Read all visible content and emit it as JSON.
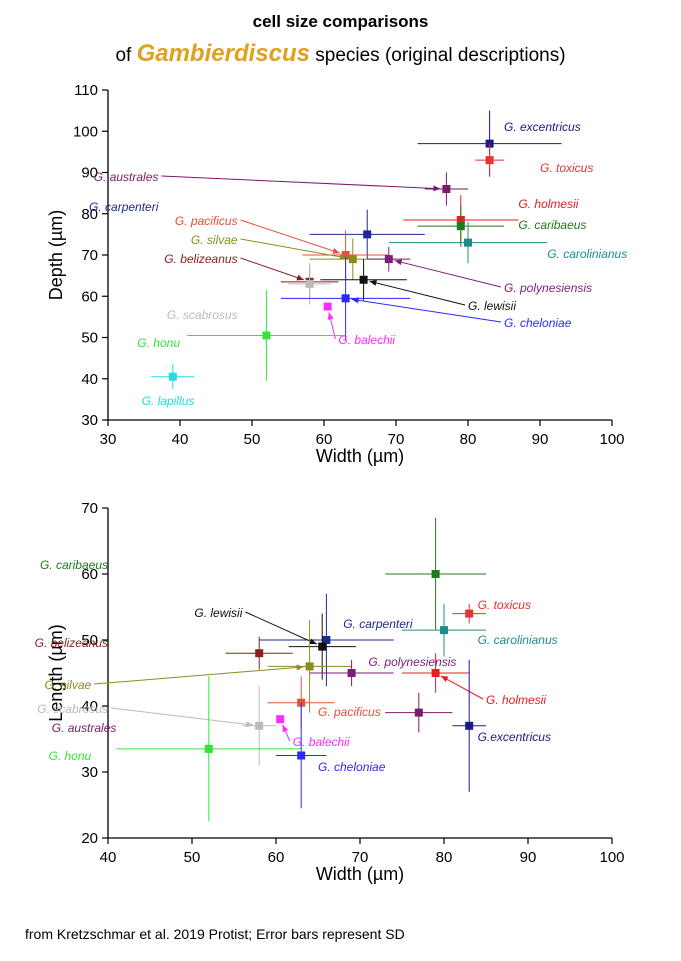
{
  "title": {
    "line1": "cell size comparisons",
    "line2_prefix": "of ",
    "line2_genus": "Gambierdiscus",
    "line2_suffix": " species (original descriptions)"
  },
  "footer": "from Kretzschmar et al. 2019 Protist; Error bars represent SD",
  "chart_data": [
    {
      "type": "scatter",
      "title": "",
      "xlabel": "Width (µm)",
      "ylabel": "Depth (µm)",
      "xlim": [
        30,
        100
      ],
      "ylim": [
        30,
        110
      ],
      "xticks": [
        30,
        40,
        50,
        60,
        70,
        80,
        90,
        100
      ],
      "yticks": [
        30,
        40,
        50,
        60,
        70,
        80,
        90,
        100,
        110
      ],
      "error_bars": "SD",
      "series": [
        {
          "name": "G. excentricus",
          "color": "#1a1a8c",
          "x": 83,
          "y": 97,
          "xerr": 10,
          "yerr": 8
        },
        {
          "name": "G. toxicus",
          "color": "#e63232",
          "x": 83,
          "y": 93,
          "xerr": 2,
          "yerr": 4
        },
        {
          "name": "G. australes",
          "color": "#7a1a6e",
          "x": 77,
          "y": 86,
          "xerr": 3,
          "yerr": 4
        },
        {
          "name": "G. holmesii",
          "color": "#e61e1e",
          "x": 79,
          "y": 78.5,
          "xerr": 8,
          "yerr": 6
        },
        {
          "name": "G. caribaeus",
          "color": "#1e7a1e",
          "x": 79,
          "y": 77,
          "xerr": 6,
          "yerr": 5
        },
        {
          "name": "G. carpenteri",
          "color": "#1e2a8c",
          "x": 66,
          "y": 75,
          "xerr": 8,
          "yerr": 6
        },
        {
          "name": "G. carolinianus",
          "color": "#1e8c8c",
          "x": 80,
          "y": 73,
          "xerr": 11,
          "yerr": 5
        },
        {
          "name": "G. pacificus",
          "color": "#e6503c",
          "x": 63,
          "y": 70,
          "xerr": 6,
          "yerr": 6
        },
        {
          "name": "G. silvae",
          "color": "#8c8c1e",
          "x": 64,
          "y": 69,
          "xerr": 6,
          "yerr": 5
        },
        {
          "name": "G. polynesiensis",
          "color": "#7a1e7a",
          "x": 69,
          "y": 69,
          "xerr": 3,
          "yerr": 3
        },
        {
          "name": "G. belizeanus",
          "color": "#8c1e1e",
          "x": 58,
          "y": 63.5,
          "xerr": 4,
          "yerr": 4
        },
        {
          "name": "G. scabrosus",
          "color": "#bbbbbb",
          "x": 58,
          "y": 63,
          "xerr": 3,
          "yerr": 5
        },
        {
          "name": "G. lewisii",
          "color": "#111111",
          "x": 65.5,
          "y": 64,
          "xerr": 6,
          "yerr": 5
        },
        {
          "name": "G. cheloniae",
          "color": "#2a2aff",
          "x": 63,
          "y": 59.5,
          "xerr": 9,
          "yerr": 10
        },
        {
          "name": "G. balechii",
          "color": "#ff2aff",
          "x": 60.5,
          "y": 57.5,
          "xerr": 0,
          "yerr": 0
        },
        {
          "name": "G. honu",
          "color": "#33e633",
          "x": 52,
          "y": 50.5,
          "xerr": 11,
          "yerr": 11
        },
        {
          "name": "G. lapillus",
          "color": "#22dddd",
          "x": 39,
          "y": 40.5,
          "xerr": 3,
          "yerr": 3
        }
      ]
    },
    {
      "type": "scatter",
      "title": "",
      "xlabel": "Width (µm)",
      "ylabel": "Length (µm)",
      "xlim": [
        40,
        100
      ],
      "ylim": [
        20,
        70
      ],
      "xticks": [
        40,
        50,
        60,
        70,
        80,
        90,
        100
      ],
      "yticks": [
        20,
        30,
        40,
        50,
        60,
        70
      ],
      "error_bars": "SD",
      "series": [
        {
          "name": "G. caribaeus",
          "color": "#1e7a1e",
          "x": 79,
          "y": 60,
          "xerr": 6,
          "yerr": 8.5
        },
        {
          "name": "G. toxicus",
          "color": "#e63232",
          "x": 83,
          "y": 54,
          "xerr": 2,
          "yerr": 1.5
        },
        {
          "name": "G. carolinianus",
          "color": "#1e8c8c",
          "x": 80,
          "y": 51.5,
          "xerr": 5,
          "yerr": 4
        },
        {
          "name": "G. carpenteri",
          "color": "#1e2a8c",
          "x": 66,
          "y": 50,
          "xerr": 8,
          "yerr": 7
        },
        {
          "name": "G. lewisii",
          "color": "#111111",
          "x": 65.5,
          "y": 49,
          "xerr": 4,
          "yerr": 5
        },
        {
          "name": "G. belizeanus",
          "color": "#8c1e1e",
          "x": 58,
          "y": 48,
          "xerr": 4,
          "yerr": 2.5
        },
        {
          "name": "G. silvae",
          "color": "#8c8c1e",
          "x": 64,
          "y": 46,
          "xerr": 5,
          "yerr": 7
        },
        {
          "name": "G. holmesii",
          "color": "#e61e1e",
          "x": 79,
          "y": 45,
          "xerr": 4,
          "yerr": 3
        },
        {
          "name": "G. polynesiensis",
          "color": "#7a1e7a",
          "x": 69,
          "y": 45,
          "xerr": 5,
          "yerr": 2
        },
        {
          "name": "G. pacificus",
          "color": "#e6503c",
          "x": 63,
          "y": 40.5,
          "xerr": 4,
          "yerr": 4
        },
        {
          "name": "G. australes",
          "color": "#7a1a6e",
          "x": 77,
          "y": 39,
          "xerr": 4,
          "yerr": 3
        },
        {
          "name": "G. balechii",
          "color": "#ff2aff",
          "x": 60.5,
          "y": 38,
          "xerr": 0,
          "yerr": 0
        },
        {
          "name": "G. scabrosus",
          "color": "#bbbbbb",
          "x": 58,
          "y": 37,
          "xerr": 2,
          "yerr": 6
        },
        {
          "name": "G.excentricus",
          "color": "#1a1a8c",
          "x": 83,
          "y": 37,
          "xerr": 2,
          "yerr": 10
        },
        {
          "name": "G. honu",
          "color": "#33e633",
          "x": 52,
          "y": 33.5,
          "xerr": 11,
          "yerr": 11
        },
        {
          "name": "G. cheloniae",
          "color": "#2a2aff",
          "x": 63,
          "y": 32.5,
          "xerr": 3,
          "yerr": 8
        }
      ]
    }
  ]
}
